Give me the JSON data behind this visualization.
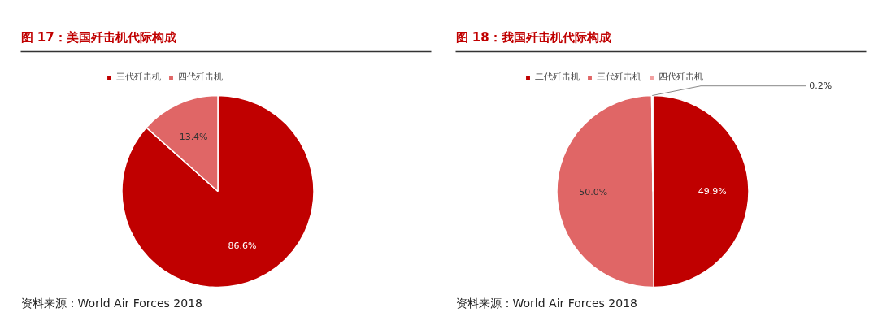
{
  "chart_data": [
    {
      "type": "pie",
      "title": "图 17：美国歼击机代际构成",
      "categories": [
        "三代歼击机",
        "四代歼击机"
      ],
      "values": [
        86.6,
        13.4
      ],
      "value_labels": [
        "86.6%",
        "13.4%"
      ],
      "colors": [
        "#c00000",
        "#e06666"
      ],
      "legend": "top",
      "annotations": [
        "资料来源：World Air Forces 2018"
      ]
    },
    {
      "type": "pie",
      "title": "图 18：我国歼击机代际构成",
      "categories": [
        "二代歼击机",
        "三代歼击机",
        "四代歼击机"
      ],
      "values": [
        49.9,
        50.0,
        0.2
      ],
      "value_labels": [
        "49.9%",
        "50.0%",
        "0.2%"
      ],
      "colors": [
        "#c00000",
        "#e06666",
        "#f2a0a0"
      ],
      "legend": "top",
      "annotations": [
        "资料来源：World Air Forces 2018"
      ]
    }
  ]
}
